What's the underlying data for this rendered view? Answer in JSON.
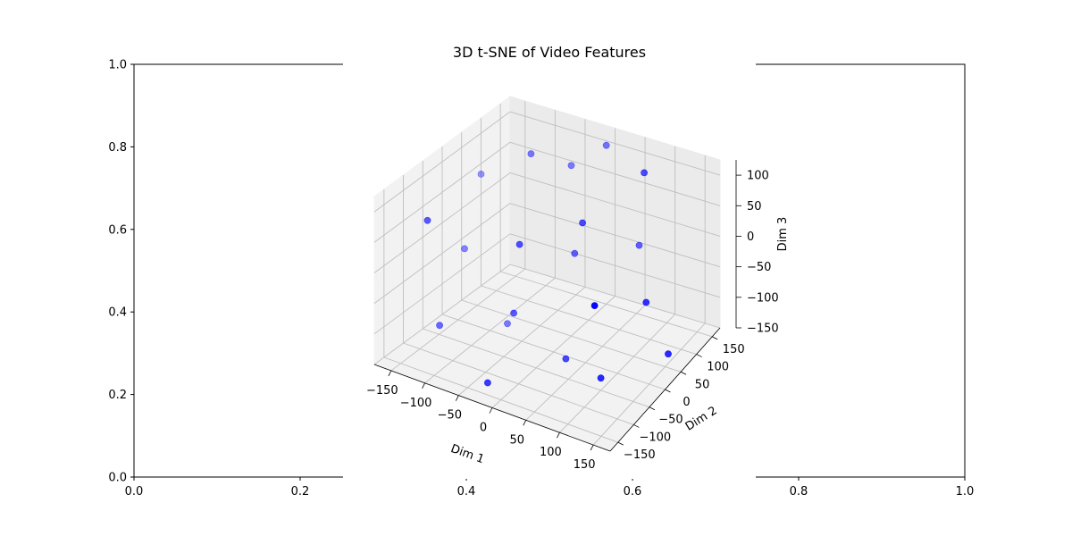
{
  "chart_data": [
    {
      "type": "line",
      "title": "",
      "xlabel": "",
      "ylabel": "",
      "xlim": [
        0.0,
        1.0
      ],
      "ylim": [
        0.0,
        1.0
      ],
      "xticks": [
        "0.0",
        "0.2",
        "0.4",
        "0.6",
        "0.8",
        "1.0"
      ],
      "yticks": [
        "0.0",
        "0.2",
        "0.4",
        "0.6",
        "0.8",
        "1.0"
      ],
      "series": []
    },
    {
      "type": "scatter",
      "projection": "3d",
      "title": "3D t-SNE of Video Features",
      "xlabel": "Dim 1",
      "ylabel": "Dim 2",
      "zlabel": "Dim 3",
      "xlim": [
        -175,
        175
      ],
      "ylim": [
        -175,
        175
      ],
      "zlim": [
        -150,
        125
      ],
      "xticks": [
        "−150",
        "−100",
        "−50",
        "0",
        "50",
        "100",
        "150"
      ],
      "yticks": [
        "−150",
        "−100",
        "−50",
        "0",
        "50",
        "100",
        "150"
      ],
      "zticks": [
        "−150",
        "−100",
        "−50",
        "0",
        "50",
        "100"
      ],
      "grid": true,
      "marker_color": "#0000ff",
      "points": [
        {
          "x": -150,
          "y": 60,
          "z": 60
        },
        {
          "x": -110,
          "y": -150,
          "z": 100
        },
        {
          "x": -70,
          "y": 60,
          "z": 120
        },
        {
          "x": -40,
          "y": 120,
          "z": 80
        },
        {
          "x": -20,
          "y": -60,
          "z": 50
        },
        {
          "x": 0,
          "y": 150,
          "z": 110
        },
        {
          "x": 40,
          "y": 10,
          "z": 70
        },
        {
          "x": 90,
          "y": 100,
          "z": 120
        },
        {
          "x": 140,
          "y": -150,
          "z": 60
        },
        {
          "x": -140,
          "y": 0,
          "z": -30
        },
        {
          "x": -120,
          "y": -100,
          "z": -100
        },
        {
          "x": -40,
          "y": -40,
          "z": -80
        },
        {
          "x": 0,
          "y": 60,
          "z": -20
        },
        {
          "x": 60,
          "y": 140,
          "z": -30
        },
        {
          "x": 130,
          "y": 30,
          "z": -40
        },
        {
          "x": -90,
          "y": 30,
          "z": -150
        },
        {
          "x": -20,
          "y": -150,
          "z": -130
        },
        {
          "x": 30,
          "y": -20,
          "z": -140
        },
        {
          "x": 100,
          "y": -50,
          "z": -130
        },
        {
          "x": 160,
          "y": 40,
          "z": -120
        }
      ]
    }
  ]
}
